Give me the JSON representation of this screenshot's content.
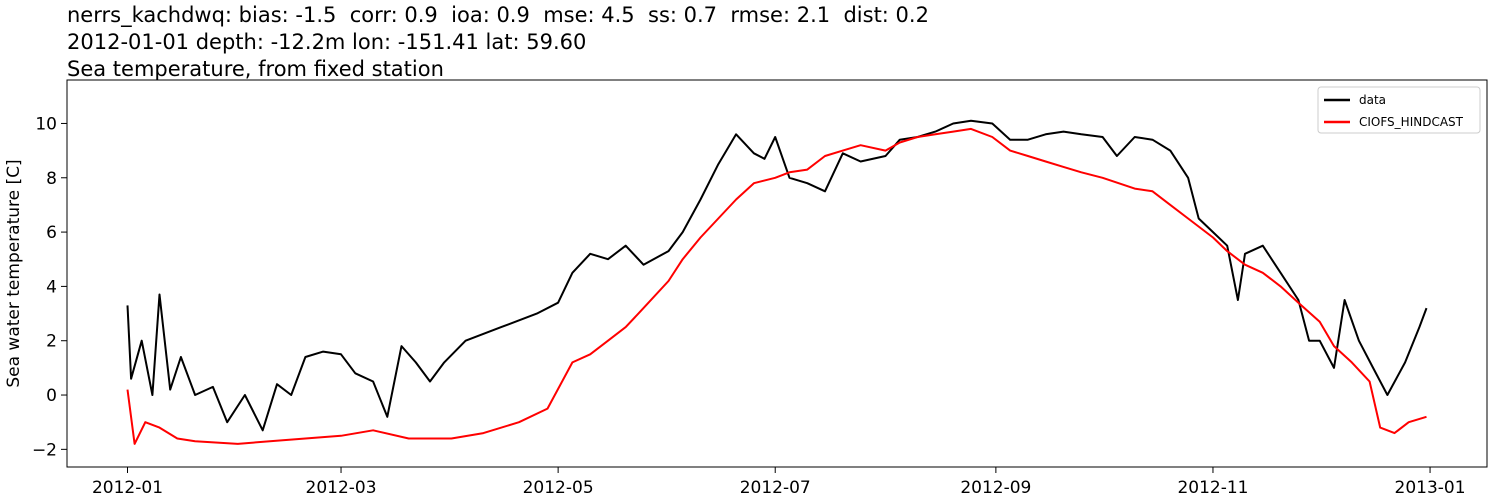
{
  "chart_data": {
    "type": "line",
    "title_lines": [
      "nerrs_kachdwq: bias: -1.5  corr: 0.9  ioa: 0.9  mse: 4.5  ss: 0.7  rmse: 2.1  dist: 0.2",
      "2012-01-01 depth: -12.2m lon: -151.41 lat: 59.60",
      "Sea temperature, from fixed station"
    ],
    "xlabel": "",
    "ylabel": "Sea water temperature [C]",
    "xlim": [
      "2011-12-15",
      "2013-01-17"
    ],
    "ylim": [
      -2.65,
      11.6
    ],
    "x_ticks": [
      "2012-01",
      "2012-03",
      "2012-05",
      "2012-07",
      "2012-09",
      "2012-11",
      "2013-01"
    ],
    "y_ticks": [
      -2,
      0,
      2,
      4,
      6,
      8,
      10
    ],
    "legend_position": "top-right",
    "grid": false,
    "series": [
      {
        "name": "data",
        "color": "#000000",
        "points": [
          [
            "2012-01-01",
            3.3
          ],
          [
            "2012-01-02",
            0.6
          ],
          [
            "2012-01-05",
            2.0
          ],
          [
            "2012-01-08",
            0.0
          ],
          [
            "2012-01-10",
            3.7
          ],
          [
            "2012-01-13",
            0.2
          ],
          [
            "2012-01-16",
            1.4
          ],
          [
            "2012-01-20",
            0.0
          ],
          [
            "2012-01-25",
            0.3
          ],
          [
            "2012-01-29",
            -1.0
          ],
          [
            "2012-02-03",
            0.0
          ],
          [
            "2012-02-08",
            -1.3
          ],
          [
            "2012-02-12",
            0.4
          ],
          [
            "2012-02-16",
            0.0
          ],
          [
            "2012-02-20",
            1.4
          ],
          [
            "2012-02-25",
            1.6
          ],
          [
            "2012-03-01",
            1.5
          ],
          [
            "2012-03-05",
            0.8
          ],
          [
            "2012-03-10",
            0.5
          ],
          [
            "2012-03-14",
            -0.8
          ],
          [
            "2012-03-18",
            1.8
          ],
          [
            "2012-03-22",
            1.2
          ],
          [
            "2012-03-26",
            0.5
          ],
          [
            "2012-03-30",
            1.2
          ],
          [
            "2012-04-05",
            2.0
          ],
          [
            "2012-04-15",
            2.5
          ],
          [
            "2012-04-25",
            3.0
          ],
          [
            "2012-05-01",
            3.4
          ],
          [
            "2012-05-05",
            4.5
          ],
          [
            "2012-05-10",
            5.2
          ],
          [
            "2012-05-15",
            5.0
          ],
          [
            "2012-05-20",
            5.5
          ],
          [
            "2012-05-25",
            4.8
          ],
          [
            "2012-06-01",
            5.3
          ],
          [
            "2012-06-05",
            6.0
          ],
          [
            "2012-06-10",
            7.2
          ],
          [
            "2012-06-15",
            8.5
          ],
          [
            "2012-06-20",
            9.6
          ],
          [
            "2012-06-25",
            8.9
          ],
          [
            "2012-06-28",
            8.7
          ],
          [
            "2012-07-01",
            9.5
          ],
          [
            "2012-07-05",
            8.0
          ],
          [
            "2012-07-10",
            7.8
          ],
          [
            "2012-07-15",
            7.5
          ],
          [
            "2012-07-20",
            8.9
          ],
          [
            "2012-07-25",
            8.6
          ],
          [
            "2012-08-01",
            8.8
          ],
          [
            "2012-08-05",
            9.4
          ],
          [
            "2012-08-10",
            9.5
          ],
          [
            "2012-08-15",
            9.7
          ],
          [
            "2012-08-20",
            10.0
          ],
          [
            "2012-08-25",
            10.1
          ],
          [
            "2012-08-31",
            10.0
          ],
          [
            "2012-09-05",
            9.4
          ],
          [
            "2012-09-10",
            9.4
          ],
          [
            "2012-09-15",
            9.6
          ],
          [
            "2012-09-20",
            9.7
          ],
          [
            "2012-09-25",
            9.6
          ],
          [
            "2012-10-01",
            9.5
          ],
          [
            "2012-10-05",
            8.8
          ],
          [
            "2012-10-10",
            9.5
          ],
          [
            "2012-10-15",
            9.4
          ],
          [
            "2012-10-20",
            9.0
          ],
          [
            "2012-10-25",
            8.0
          ],
          [
            "2012-10-28",
            6.5
          ],
          [
            "2012-11-01",
            6.0
          ],
          [
            "2012-11-05",
            5.5
          ],
          [
            "2012-11-08",
            3.5
          ],
          [
            "2012-11-10",
            5.2
          ],
          [
            "2012-11-15",
            5.5
          ],
          [
            "2012-11-20",
            4.5
          ],
          [
            "2012-11-25",
            3.5
          ],
          [
            "2012-11-28",
            2.0
          ],
          [
            "2012-12-01",
            2.0
          ],
          [
            "2012-12-05",
            1.0
          ],
          [
            "2012-12-08",
            3.5
          ],
          [
            "2012-12-12",
            2.0
          ],
          [
            "2012-12-16",
            1.0
          ],
          [
            "2012-12-20",
            0.0
          ],
          [
            "2012-12-25",
            1.2
          ],
          [
            "2012-12-29",
            2.5
          ],
          [
            "2012-12-31",
            3.2
          ]
        ]
      },
      {
        "name": "CIOFS_HINDCAST",
        "color": "#ff0000",
        "points": [
          [
            "2012-01-01",
            0.2
          ],
          [
            "2012-01-03",
            -1.8
          ],
          [
            "2012-01-06",
            -1.0
          ],
          [
            "2012-01-10",
            -1.2
          ],
          [
            "2012-01-15",
            -1.6
          ],
          [
            "2012-01-20",
            -1.7
          ],
          [
            "2012-02-01",
            -1.8
          ],
          [
            "2012-02-10",
            -1.7
          ],
          [
            "2012-02-20",
            -1.6
          ],
          [
            "2012-03-01",
            -1.5
          ],
          [
            "2012-03-10",
            -1.3
          ],
          [
            "2012-03-20",
            -1.6
          ],
          [
            "2012-04-01",
            -1.6
          ],
          [
            "2012-04-10",
            -1.4
          ],
          [
            "2012-04-20",
            -1.0
          ],
          [
            "2012-04-28",
            -0.5
          ],
          [
            "2012-05-05",
            1.2
          ],
          [
            "2012-05-10",
            1.5
          ],
          [
            "2012-05-15",
            2.0
          ],
          [
            "2012-05-20",
            2.5
          ],
          [
            "2012-05-25",
            3.2
          ],
          [
            "2012-06-01",
            4.2
          ],
          [
            "2012-06-05",
            5.0
          ],
          [
            "2012-06-10",
            5.8
          ],
          [
            "2012-06-15",
            6.5
          ],
          [
            "2012-06-20",
            7.2
          ],
          [
            "2012-06-25",
            7.8
          ],
          [
            "2012-07-01",
            8.0
          ],
          [
            "2012-07-05",
            8.2
          ],
          [
            "2012-07-10",
            8.3
          ],
          [
            "2012-07-15",
            8.8
          ],
          [
            "2012-07-20",
            9.0
          ],
          [
            "2012-07-25",
            9.2
          ],
          [
            "2012-08-01",
            9.0
          ],
          [
            "2012-08-05",
            9.3
          ],
          [
            "2012-08-10",
            9.5
          ],
          [
            "2012-08-15",
            9.6
          ],
          [
            "2012-08-20",
            9.7
          ],
          [
            "2012-08-25",
            9.8
          ],
          [
            "2012-08-31",
            9.5
          ],
          [
            "2012-09-05",
            9.0
          ],
          [
            "2012-09-10",
            8.8
          ],
          [
            "2012-09-15",
            8.6
          ],
          [
            "2012-09-20",
            8.4
          ],
          [
            "2012-09-25",
            8.2
          ],
          [
            "2012-10-01",
            8.0
          ],
          [
            "2012-10-10",
            7.6
          ],
          [
            "2012-10-15",
            7.5
          ],
          [
            "2012-10-20",
            7.0
          ],
          [
            "2012-10-25",
            6.5
          ],
          [
            "2012-11-01",
            5.8
          ],
          [
            "2012-11-05",
            5.3
          ],
          [
            "2012-11-10",
            4.8
          ],
          [
            "2012-11-15",
            4.5
          ],
          [
            "2012-11-20",
            4.0
          ],
          [
            "2012-11-25",
            3.4
          ],
          [
            "2012-12-01",
            2.7
          ],
          [
            "2012-12-05",
            1.8
          ],
          [
            "2012-12-10",
            1.2
          ],
          [
            "2012-12-15",
            0.5
          ],
          [
            "2012-12-18",
            -1.2
          ],
          [
            "2012-12-22",
            -1.4
          ],
          [
            "2012-12-26",
            -1.0
          ],
          [
            "2012-12-31",
            -0.8
          ]
        ]
      }
    ]
  }
}
